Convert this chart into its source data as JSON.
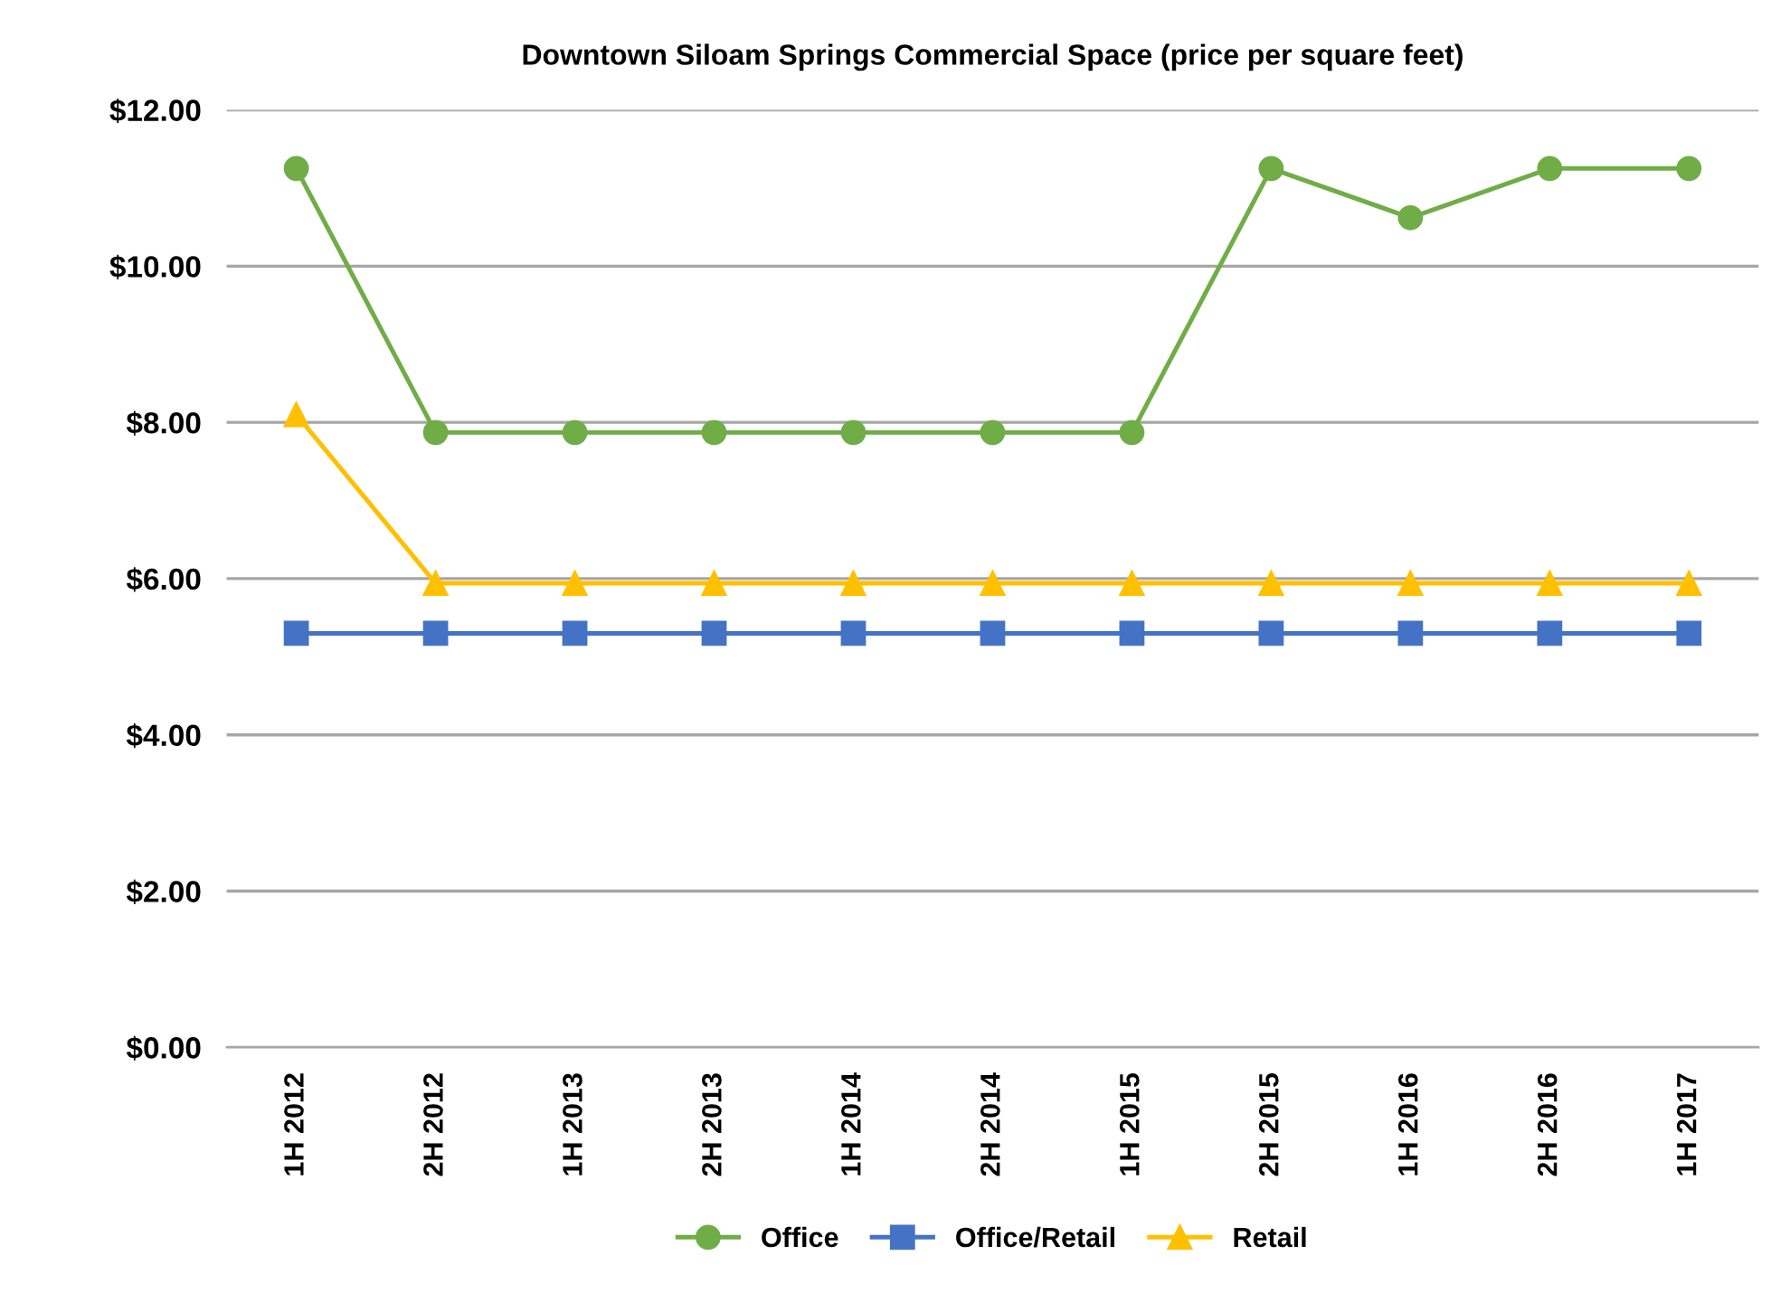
{
  "chart_data": {
    "type": "line",
    "title": "Downtown Siloam Springs Commercial Space (price per square feet)",
    "categories": [
      "1H 2012",
      "2H 2012",
      "1H 2013",
      "2H 2013",
      "1H 2014",
      "2H 2014",
      "1H 2015",
      "2H 2015",
      "1H 2016",
      "2H 2016",
      "1H 2017"
    ],
    "series": [
      {
        "name": "Office",
        "color": "#70ad47",
        "marker": "circle",
        "values": [
          11.25,
          7.87,
          7.87,
          7.87,
          7.87,
          7.87,
          7.87,
          11.25,
          10.62,
          11.25,
          11.25
        ]
      },
      {
        "name": "Office/Retail",
        "color": "#4472c4",
        "marker": "square",
        "values": [
          5.3,
          5.3,
          5.3,
          5.3,
          5.3,
          5.3,
          5.3,
          5.3,
          5.3,
          5.3,
          5.3
        ]
      },
      {
        "name": "Retail",
        "color": "#ffc000",
        "marker": "triangle",
        "values": [
          8.1,
          5.94,
          5.94,
          5.94,
          5.94,
          5.94,
          5.94,
          5.94,
          5.94,
          5.94,
          5.94
        ]
      }
    ],
    "ylim": [
      0,
      12
    ],
    "yticks": [
      {
        "value": 0,
        "label": "$0.00"
      },
      {
        "value": 2,
        "label": "$2.00"
      },
      {
        "value": 4,
        "label": "$4.00"
      },
      {
        "value": 6,
        "label": "$6.00"
      },
      {
        "value": 8,
        "label": "$8.00"
      },
      {
        "value": 10,
        "label": "$10.00"
      },
      {
        "value": 12,
        "label": "$12.00"
      }
    ],
    "grid": "y",
    "legend": "bottom",
    "line_style": "solid"
  }
}
